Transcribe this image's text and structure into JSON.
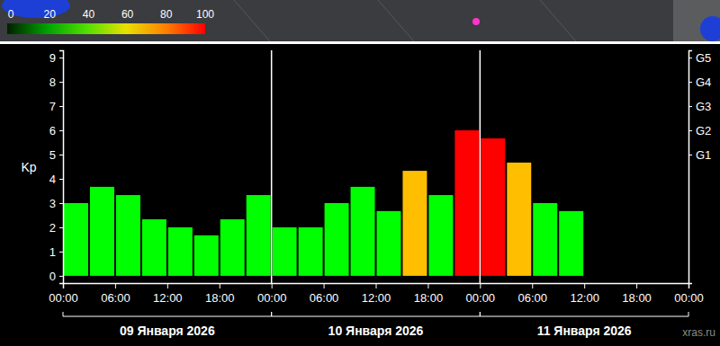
{
  "chart_data": {
    "type": "bar",
    "ylabel": "Kp",
    "bins": [
      0,
      3,
      6,
      9,
      12,
      15,
      18,
      21,
      24,
      27,
      30,
      33,
      36,
      39,
      42,
      45,
      48,
      51,
      54,
      57,
      60,
      63,
      66,
      69,
      72
    ],
    "values": [
      3.0,
      3.67,
      3.33,
      2.33,
      2.0,
      1.67,
      2.33,
      3.33,
      2.0,
      2.0,
      3.0,
      3.67,
      2.67,
      4.33,
      3.33,
      6.0,
      5.67,
      4.67,
      3.0,
      2.67,
      null,
      null,
      null,
      null
    ],
    "colors": [
      "#00ff00",
      "#00ff00",
      "#00ff00",
      "#00ff00",
      "#00ff00",
      "#00ff00",
      "#00ff00",
      "#00ff00",
      "#00ff00",
      "#00ff00",
      "#00ff00",
      "#00ff00",
      "#00ff00",
      "#ffbf00",
      "#00ff00",
      "#ff0000",
      "#ff0000",
      "#ffbf00",
      "#00ff00",
      "#00ff00",
      null,
      null,
      null,
      null
    ],
    "xlim": [
      0,
      72
    ],
    "xticks": [
      {
        "value": 0,
        "label": "00:00"
      },
      {
        "value": 6,
        "label": "06:00"
      },
      {
        "value": 12,
        "label": "12:00"
      },
      {
        "value": 18,
        "label": "18:00"
      },
      {
        "value": 24,
        "label": "00:00"
      },
      {
        "value": 30,
        "label": "06:00"
      },
      {
        "value": 36,
        "label": "12:00"
      },
      {
        "value": 42,
        "label": "18:00"
      },
      {
        "value": 48,
        "label": "00:00"
      },
      {
        "value": 54,
        "label": "06:00"
      },
      {
        "value": 60,
        "label": "12:00"
      },
      {
        "value": 66,
        "label": "18:00"
      },
      {
        "value": 72,
        "label": "00:00"
      }
    ],
    "ylim": [
      -0.3,
      9.3
    ],
    "yticks": [
      0,
      1,
      2,
      3,
      4,
      5,
      6,
      7,
      8,
      9
    ],
    "y2lim": [
      -0.3,
      9.3
    ],
    "y2ticks": [
      {
        "value": 5,
        "label": "G1"
      },
      {
        "value": 6,
        "label": "G2"
      },
      {
        "value": 7,
        "label": "G3"
      },
      {
        "value": 8,
        "label": "G4"
      },
      {
        "value": 9,
        "label": "G5"
      }
    ],
    "grid": false,
    "day_labels": [
      {
        "label": "09 Января 2026",
        "start": 0,
        "end": 24
      },
      {
        "label": "10 Января 2026",
        "start": 24,
        "end": 48
      },
      {
        "label": "11 Января 2026",
        "start": 48,
        "end": 72
      }
    ],
    "colorbar": {
      "range": [
        0,
        100
      ],
      "ticks": [
        0,
        20,
        40,
        60,
        80,
        100
      ]
    },
    "credit": "xras.ru"
  }
}
